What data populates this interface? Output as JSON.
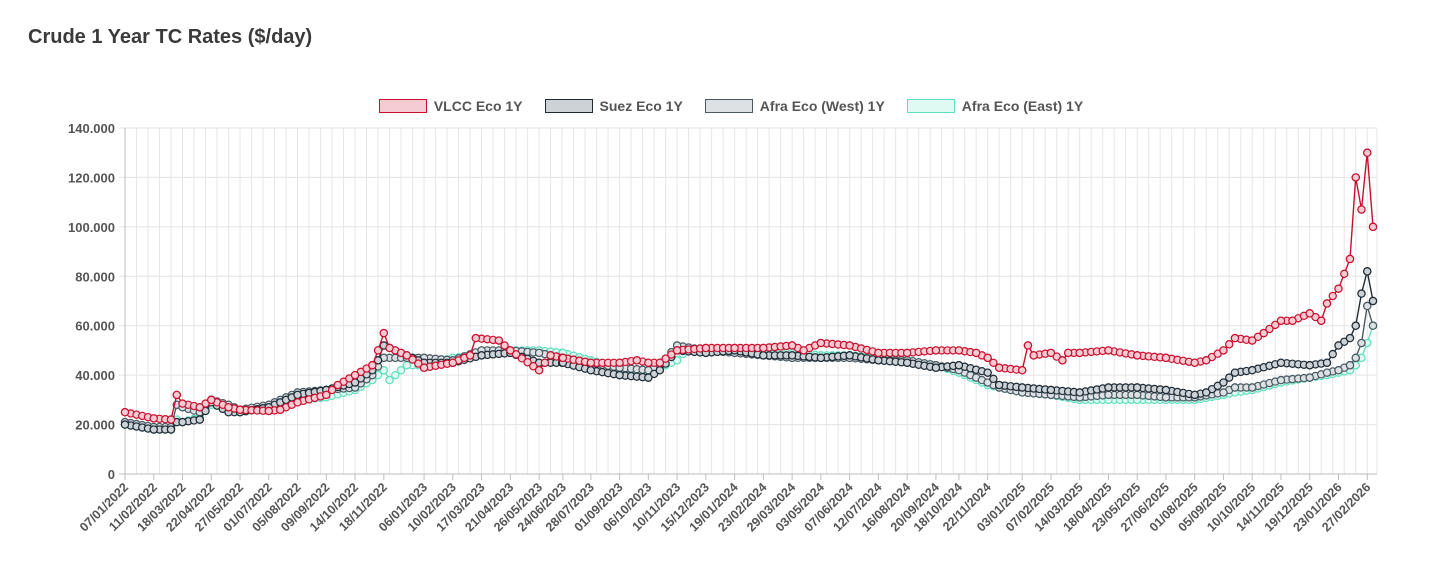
{
  "title": "Crude 1 Year TC Rates ($/day)",
  "legend": [
    {
      "name": "VLCC Eco 1Y",
      "stroke": "#c8102e",
      "fill": "#f5ccd3"
    },
    {
      "name": "Suez Eco 1Y",
      "stroke": "#1e2b35",
      "fill": "#cdd2d6"
    },
    {
      "name": "Afra Eco (West) 1Y",
      "stroke": "#4a5a63",
      "fill": "#dde1e4"
    },
    {
      "name": "Afra Eco (East) 1Y",
      "stroke": "#5fe0bf",
      "fill": "#dffaf2"
    }
  ],
  "chart_data": {
    "type": "line",
    "title": "Crude 1 Year TC Rates ($/day)",
    "ylim": [
      0,
      140000
    ],
    "y_ticks": [
      "0",
      "20.000",
      "40.000",
      "60.000",
      "80.000",
      "100.000",
      "120.000",
      "140.000"
    ],
    "x_tick_labels": [
      "07/01/2022",
      "11/02/2022",
      "18/03/2022",
      "22/04/2022",
      "27/05/2022",
      "01/07/2022",
      "05/08/2022",
      "09/09/2022",
      "14/10/2022",
      "18/11/2022",
      "06/01/2023",
      "10/02/2023",
      "17/03/2023",
      "21/04/2023",
      "26/05/2023",
      "24/06/2023",
      "28/07/2023",
      "01/09/2023",
      "06/10/2023",
      "10/11/2023",
      "15/12/2023",
      "19/01/2024",
      "23/02/2024",
      "29/03/2024",
      "03/05/2024",
      "07/06/2024",
      "12/07/2024",
      "16/08/2024",
      "20/09/2024",
      "18/10/2024",
      "22/11/2024",
      "03/01/2025",
      "07/02/2025",
      "14/03/2025",
      "18/04/2025",
      "23/05/2025",
      "27/06/2025",
      "01/08/2025",
      "05/09/2025",
      "10/10/2025",
      "14/11/2025",
      "19/12/2025",
      "23/01/2026",
      "27/02/2026"
    ],
    "grid": true,
    "legend_position": "top-center",
    "series": [
      {
        "name": "VLCC Eco 1Y",
        "points": [
          [
            "07/01/2022",
            25000
          ],
          [
            "11/02/2022",
            22500
          ],
          [
            "04/03/2022",
            22000
          ],
          [
            "11/03/2022",
            32000
          ],
          [
            "18/03/2022",
            28500
          ],
          [
            "08/04/2022",
            27000
          ],
          [
            "22/04/2022",
            30000
          ],
          [
            "13/05/2022",
            27000
          ],
          [
            "27/05/2022",
            26000
          ],
          [
            "01/07/2022",
            25500
          ],
          [
            "15/07/2022",
            26000
          ],
          [
            "05/08/2022",
            29000
          ],
          [
            "09/09/2022",
            32000
          ],
          [
            "23/09/2022",
            36000
          ],
          [
            "14/10/2022",
            40000
          ],
          [
            "04/11/2022",
            44000
          ],
          [
            "11/11/2022",
            50000
          ],
          [
            "18/11/2022",
            57000
          ],
          [
            "25/11/2022",
            51000
          ],
          [
            "16/12/2022",
            48000
          ],
          [
            "06/01/2023",
            43000
          ],
          [
            "10/02/2023",
            45000
          ],
          [
            "03/03/2023",
            48000
          ],
          [
            "10/03/2023",
            55000
          ],
          [
            "07/04/2023",
            54000
          ],
          [
            "21/04/2023",
            50000
          ],
          [
            "26/05/2023",
            42000
          ],
          [
            "09/06/2023",
            48000
          ],
          [
            "24/06/2023",
            47000
          ],
          [
            "28/07/2023",
            45000
          ],
          [
            "01/09/2023",
            45000
          ],
          [
            "22/09/2023",
            46000
          ],
          [
            "06/10/2023",
            45000
          ],
          [
            "20/10/2023",
            45000
          ],
          [
            "10/11/2023",
            50000
          ],
          [
            "15/12/2023",
            51000
          ],
          [
            "19/01/2024",
            51000
          ],
          [
            "23/02/2024",
            51000
          ],
          [
            "29/03/2024",
            52000
          ],
          [
            "12/04/2024",
            50000
          ],
          [
            "03/05/2024",
            53000
          ],
          [
            "07/06/2024",
            52000
          ],
          [
            "12/07/2024",
            49000
          ],
          [
            "16/08/2024",
            49000
          ],
          [
            "20/09/2024",
            50000
          ],
          [
            "18/10/2024",
            50000
          ],
          [
            "08/11/2024",
            49000
          ],
          [
            "22/11/2024",
            47000
          ],
          [
            "06/12/2024",
            43000
          ],
          [
            "03/01/2025",
            42000
          ],
          [
            "10/01/2025",
            52000
          ],
          [
            "17/01/2025",
            48000
          ],
          [
            "07/02/2025",
            49000
          ],
          [
            "21/02/2025",
            46000
          ],
          [
            "28/02/2025",
            49000
          ],
          [
            "14/03/2025",
            49000
          ],
          [
            "18/04/2025",
            50000
          ],
          [
            "23/05/2025",
            48000
          ],
          [
            "27/06/2025",
            47000
          ],
          [
            "01/08/2025",
            45000
          ],
          [
            "15/08/2025",
            46000
          ],
          [
            "05/09/2025",
            50000
          ],
          [
            "19/09/2025",
            55000
          ],
          [
            "10/10/2025",
            54000
          ],
          [
            "24/10/2025",
            57000
          ],
          [
            "14/11/2025",
            62000
          ],
          [
            "28/11/2025",
            62000
          ],
          [
            "19/12/2025",
            65000
          ],
          [
            "02/01/2026",
            62000
          ],
          [
            "09/01/2026",
            69000
          ],
          [
            "23/01/2026",
            75000
          ],
          [
            "06/02/2026",
            87000
          ],
          [
            "13/02/2026",
            120000
          ],
          [
            "20/02/2026",
            107000
          ],
          [
            "27/02/2026",
            130000
          ],
          [
            "06/03/2026",
            100000
          ]
        ]
      },
      {
        "name": "Suez Eco 1Y",
        "points": [
          [
            "07/01/2022",
            20000
          ],
          [
            "11/02/2022",
            18000
          ],
          [
            "04/03/2022",
            18000
          ],
          [
            "11/03/2022",
            21000
          ],
          [
            "18/03/2022",
            21000
          ],
          [
            "08/04/2022",
            22000
          ],
          [
            "22/04/2022",
            29000
          ],
          [
            "13/05/2022",
            25000
          ],
          [
            "27/05/2022",
            25000
          ],
          [
            "01/07/2022",
            27000
          ],
          [
            "05/08/2022",
            32000
          ],
          [
            "09/09/2022",
            34000
          ],
          [
            "14/10/2022",
            37000
          ],
          [
            "04/11/2022",
            42000
          ],
          [
            "11/11/2022",
            46000
          ],
          [
            "18/11/2022",
            52000
          ],
          [
            "06/01/2023",
            45000
          ],
          [
            "10/02/2023",
            45000
          ],
          [
            "17/03/2023",
            48000
          ],
          [
            "21/04/2023",
            49000
          ],
          [
            "26/05/2023",
            45000
          ],
          [
            "24/06/2023",
            45000
          ],
          [
            "28/07/2023",
            42000
          ],
          [
            "01/09/2023",
            40000
          ],
          [
            "06/10/2023",
            39000
          ],
          [
            "20/10/2023",
            42000
          ],
          [
            "10/11/2023",
            50000
          ],
          [
            "15/12/2023",
            49000
          ],
          [
            "19/01/2024",
            50000
          ],
          [
            "23/02/2024",
            48000
          ],
          [
            "29/03/2024",
            48000
          ],
          [
            "03/05/2024",
            47000
          ],
          [
            "07/06/2024",
            48000
          ],
          [
            "12/07/2024",
            46000
          ],
          [
            "16/08/2024",
            45000
          ],
          [
            "20/09/2024",
            43000
          ],
          [
            "18/10/2024",
            44000
          ],
          [
            "22/11/2024",
            41000
          ],
          [
            "06/12/2024",
            36000
          ],
          [
            "03/01/2025",
            35000
          ],
          [
            "07/02/2025",
            34000
          ],
          [
            "14/03/2025",
            33000
          ],
          [
            "18/04/2025",
            35000
          ],
          [
            "23/05/2025",
            35000
          ],
          [
            "27/06/2025",
            34000
          ],
          [
            "01/08/2025",
            32000
          ],
          [
            "15/08/2025",
            33000
          ],
          [
            "05/09/2025",
            37000
          ],
          [
            "19/09/2025",
            41000
          ],
          [
            "10/10/2025",
            42000
          ],
          [
            "14/11/2025",
            45000
          ],
          [
            "19/12/2025",
            44000
          ],
          [
            "09/01/2026",
            45000
          ],
          [
            "23/01/2026",
            52000
          ],
          [
            "06/02/2026",
            55000
          ],
          [
            "13/02/2026",
            60000
          ],
          [
            "20/02/2026",
            73000
          ],
          [
            "27/02/2026",
            82000
          ],
          [
            "06/03/2026",
            70000
          ]
        ]
      },
      {
        "name": "Afra Eco (West) 1Y",
        "points": [
          [
            "07/01/2022",
            21000
          ],
          [
            "11/02/2022",
            19000
          ],
          [
            "04/03/2022",
            19000
          ],
          [
            "11/03/2022",
            28000
          ],
          [
            "18/03/2022",
            27000
          ],
          [
            "08/04/2022",
            25000
          ],
          [
            "22/04/2022",
            30000
          ],
          [
            "13/05/2022",
            28000
          ],
          [
            "27/05/2022",
            26000
          ],
          [
            "01/07/2022",
            28000
          ],
          [
            "05/08/2022",
            33000
          ],
          [
            "09/09/2022",
            34000
          ],
          [
            "14/10/2022",
            35000
          ],
          [
            "04/11/2022",
            40000
          ],
          [
            "18/11/2022",
            47000
          ],
          [
            "06/01/2023",
            47000
          ],
          [
            "10/02/2023",
            46000
          ],
          [
            "17/03/2023",
            50000
          ],
          [
            "21/04/2023",
            50000
          ],
          [
            "26/05/2023",
            49000
          ],
          [
            "24/06/2023",
            47000
          ],
          [
            "28/07/2023",
            45000
          ],
          [
            "01/09/2023",
            43000
          ],
          [
            "06/10/2023",
            42000
          ],
          [
            "20/10/2023",
            44000
          ],
          [
            "10/11/2023",
            52000
          ],
          [
            "15/12/2023",
            50000
          ],
          [
            "19/01/2024",
            49000
          ],
          [
            "23/02/2024",
            48000
          ],
          [
            "29/03/2024",
            47000
          ],
          [
            "03/05/2024",
            47000
          ],
          [
            "07/06/2024",
            47000
          ],
          [
            "12/07/2024",
            46000
          ],
          [
            "16/08/2024",
            46000
          ],
          [
            "20/09/2024",
            44000
          ],
          [
            "18/10/2024",
            42000
          ],
          [
            "22/11/2024",
            37000
          ],
          [
            "06/12/2024",
            35000
          ],
          [
            "03/01/2025",
            33000
          ],
          [
            "07/02/2025",
            32000
          ],
          [
            "14/03/2025",
            31000
          ],
          [
            "18/04/2025",
            32000
          ],
          [
            "23/05/2025",
            32000
          ],
          [
            "27/06/2025",
            31000
          ],
          [
            "01/08/2025",
            31000
          ],
          [
            "05/09/2025",
            33000
          ],
          [
            "19/09/2025",
            35000
          ],
          [
            "10/10/2025",
            35000
          ],
          [
            "14/11/2025",
            38000
          ],
          [
            "19/12/2025",
            39000
          ],
          [
            "09/01/2026",
            41000
          ],
          [
            "23/01/2026",
            42000
          ],
          [
            "06/02/2026",
            44000
          ],
          [
            "13/02/2026",
            47000
          ],
          [
            "20/02/2026",
            53000
          ],
          [
            "27/02/2026",
            68000
          ],
          [
            "06/03/2026",
            60000
          ]
        ]
      },
      {
        "name": "Afra Eco (East) 1Y",
        "points": [
          [
            "07/01/2022",
            20000
          ],
          [
            "11/02/2022",
            18000
          ],
          [
            "04/03/2022",
            18000
          ],
          [
            "11/03/2022",
            22000
          ],
          [
            "18/03/2022",
            21000
          ],
          [
            "08/04/2022",
            23000
          ],
          [
            "22/04/2022",
            28000
          ],
          [
            "13/05/2022",
            27000
          ],
          [
            "27/05/2022",
            25000
          ],
          [
            "01/07/2022",
            27000
          ],
          [
            "05/08/2022",
            30000
          ],
          [
            "09/09/2022",
            31000
          ],
          [
            "14/10/2022",
            34000
          ],
          [
            "04/11/2022",
            38000
          ],
          [
            "18/11/2022",
            42000
          ],
          [
            "25/11/2022",
            38000
          ],
          [
            "16/12/2022",
            44000
          ],
          [
            "06/01/2023",
            44000
          ],
          [
            "10/02/2023",
            47000
          ],
          [
            "17/03/2023",
            48000
          ],
          [
            "21/04/2023",
            50000
          ],
          [
            "26/05/2023",
            50000
          ],
          [
            "24/06/2023",
            49000
          ],
          [
            "28/07/2023",
            46000
          ],
          [
            "01/09/2023",
            43000
          ],
          [
            "06/10/2023",
            41000
          ],
          [
            "20/10/2023",
            43000
          ],
          [
            "10/11/2023",
            46000
          ],
          [
            "24/11/2023",
            51000
          ],
          [
            "15/12/2023",
            50000
          ],
          [
            "19/01/2024",
            50000
          ],
          [
            "23/02/2024",
            49000
          ],
          [
            "29/03/2024",
            49000
          ],
          [
            "03/05/2024",
            48000
          ],
          [
            "07/06/2024",
            48000
          ],
          [
            "12/07/2024",
            47000
          ],
          [
            "16/08/2024",
            46000
          ],
          [
            "20/09/2024",
            44000
          ],
          [
            "18/10/2024",
            41000
          ],
          [
            "22/11/2024",
            36000
          ],
          [
            "06/12/2024",
            35000
          ],
          [
            "03/01/2025",
            33000
          ],
          [
            "07/02/2025",
            32000
          ],
          [
            "14/03/2025",
            30000
          ],
          [
            "18/04/2025",
            30000
          ],
          [
            "23/05/2025",
            30000
          ],
          [
            "27/06/2025",
            30000
          ],
          [
            "01/08/2025",
            30000
          ],
          [
            "05/09/2025",
            32000
          ],
          [
            "19/09/2025",
            33000
          ],
          [
            "10/10/2025",
            34000
          ],
          [
            "14/11/2025",
            37000
          ],
          [
            "19/12/2025",
            39000
          ],
          [
            "09/01/2026",
            40000
          ],
          [
            "23/01/2026",
            41000
          ],
          [
            "06/02/2026",
            42000
          ],
          [
            "13/02/2026",
            44000
          ],
          [
            "20/02/2026",
            47000
          ],
          [
            "27/02/2026",
            53000
          ],
          [
            "06/03/2026",
            60000
          ]
        ]
      }
    ]
  }
}
